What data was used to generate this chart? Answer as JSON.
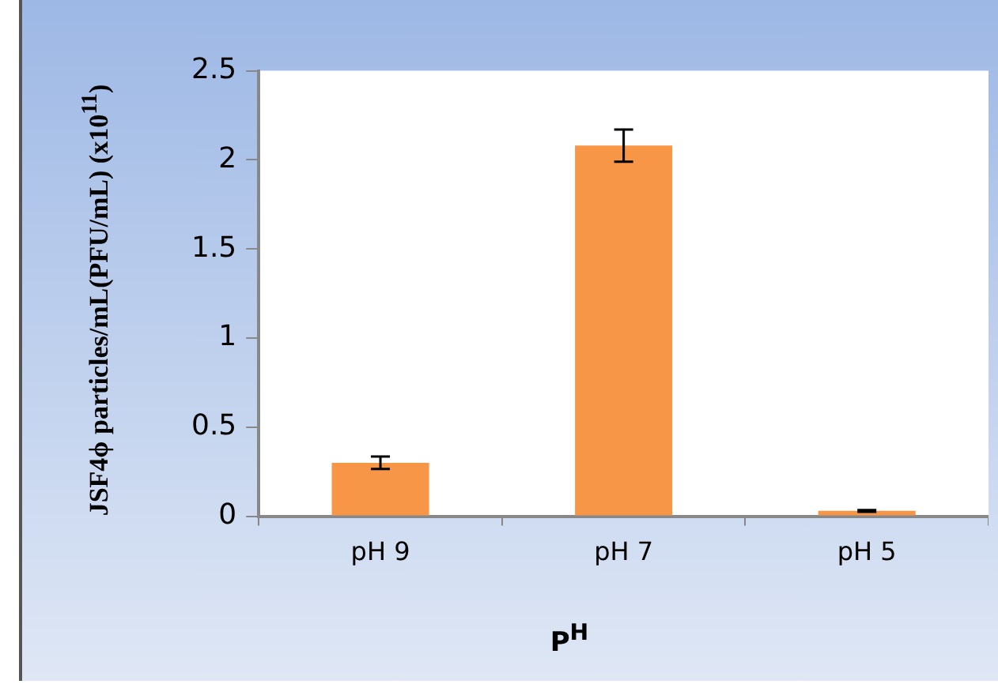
{
  "chart_data": {
    "type": "bar",
    "xlabel": "P$^{H}$",
    "ylabel": "JSF4ϕ particles/mL(PFU/mL) (x10$^{11}$)",
    "categories": [
      "pH 9",
      "pH 7",
      "pH 5"
    ],
    "values": [
      0.3,
      2.08,
      0.03
    ],
    "errors": [
      0.035,
      0.09,
      0.005
    ],
    "color": "#f79646",
    "ylim": [
      0,
      2.5
    ],
    "yticks": [
      0,
      0.5,
      1,
      1.5,
      2,
      2.5
    ],
    "grid": false,
    "legend": false
  }
}
